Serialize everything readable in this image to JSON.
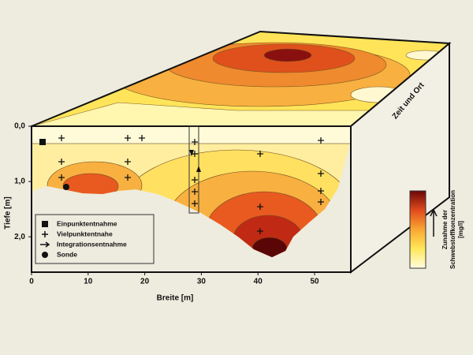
{
  "axes": {
    "x": {
      "label": "Breite [m]",
      "ticks": [
        0,
        10,
        20,
        30,
        40,
        50
      ],
      "lim": [
        0,
        56.4
      ]
    },
    "y": {
      "label": "Tiefe [m]",
      "ticks": [
        {
          "value": 0,
          "label": "0,0"
        },
        {
          "value": 1,
          "label": "1,0"
        },
        {
          "value": 2,
          "label": "2,0"
        }
      ],
      "lim": [
        0,
        2.64
      ]
    }
  },
  "legend": [
    "Einpunktentnahme",
    "Vielpunktentnahe",
    "Integrationsentnahme",
    "Sonde"
  ],
  "colorbar": {
    "label": [
      "Zunahme der",
      "Schwebstoffkonzentration",
      "[mg/l]"
    ]
  },
  "time_axis_label": "Zeit und Ort"
}
